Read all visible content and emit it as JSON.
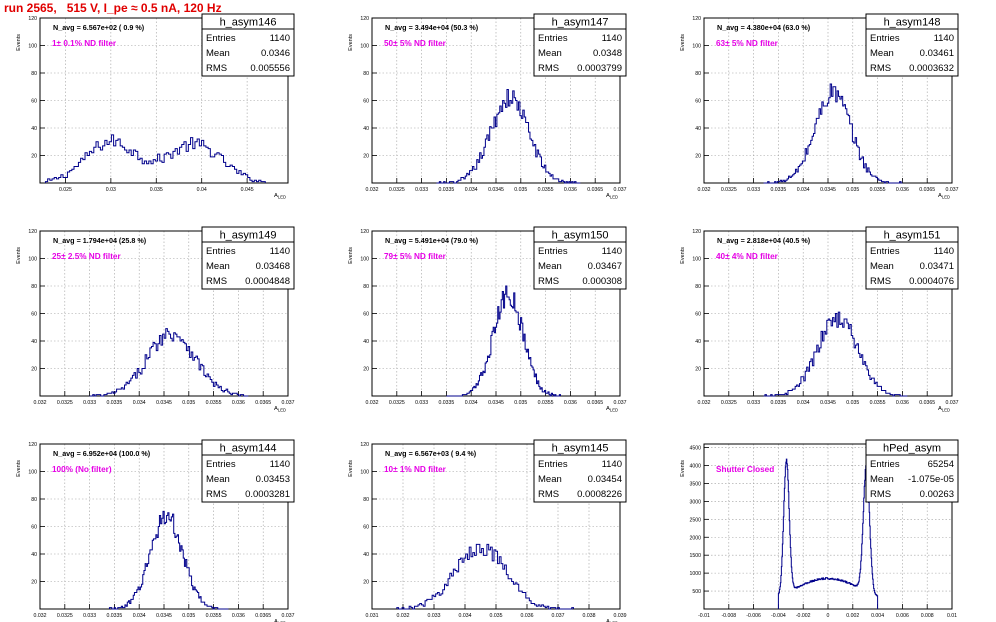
{
  "page": {
    "run_title": "run 2565,   515 V, I_pe ≈ 0.5 nA, 120 Hz"
  },
  "colors": {
    "hist": "#00008b",
    "annot": "#e600e6",
    "title": "#e00000",
    "grid": "#a0a0a0"
  },
  "chart_data": [
    {
      "type": "histogram",
      "name": "h_asym146",
      "ylabel": "Events",
      "xlabel": "A_{LED}",
      "xlim": [
        0.0222,
        0.0495
      ],
      "ylim": [
        0,
        120
      ],
      "xticks": [
        0.025,
        0.03,
        0.035,
        0.04,
        0.045
      ],
      "xtick_labels": [
        "0.025",
        "0.03",
        "0.035",
        "0.04",
        "0.045"
      ],
      "yticks": [
        20,
        40,
        60,
        80,
        100,
        120
      ],
      "ytick_labels": [
        "20",
        "40",
        "60",
        "80",
        "100",
        "120"
      ],
      "navg": "N_avg = 6.567e+02 ( 0.9 %)",
      "annotation": "1± 0.1% ND filter",
      "stats": {
        "entries": "1140",
        "mean": "0.0346",
        "rms": "0.005556"
      },
      "peaks": [
        {
          "mu": 0.03,
          "sigma": 0.0028,
          "amp": 30
        },
        {
          "mu": 0.0392,
          "sigma": 0.003,
          "amp": 28
        }
      ],
      "xrange_data": [
        0.0228,
        0.047
      ],
      "nbins": 100
    },
    {
      "type": "histogram",
      "name": "h_asym147",
      "ylabel": "Events",
      "xlabel": "A_{LED}",
      "xlim": [
        0.032,
        0.037
      ],
      "ylim": [
        0,
        120
      ],
      "xticks": [
        0.032,
        0.0325,
        0.033,
        0.0335,
        0.034,
        0.0345,
        0.035,
        0.0355,
        0.036,
        0.0365,
        0.037
      ],
      "xtick_labels": [
        "0.032",
        "0.0325",
        "0.033",
        "0.0335",
        "0.034",
        "0.0345",
        "0.035",
        "0.0355",
        "0.036",
        "0.0365",
        "0.037"
      ],
      "yticks": [
        20,
        40,
        60,
        80,
        100,
        120
      ],
      "ytick_labels": [
        "20",
        "40",
        "60",
        "80",
        "100",
        "120"
      ],
      "navg": "N_avg = 3.494e+04 (50.3 %)",
      "annotation": "50± 5% ND filter",
      "stats": {
        "entries": "1140",
        "mean": "0.0348",
        "rms": "0.0003799"
      },
      "peaks": [
        {
          "mu": 0.03478,
          "sigma": 0.00038,
          "amp": 62
        }
      ],
      "xrange_data": [
        0.0333,
        0.0362
      ],
      "nbins": 100
    },
    {
      "type": "histogram",
      "name": "h_asym148",
      "ylabel": "Events",
      "xlabel": "A_{LED}",
      "xlim": [
        0.032,
        0.037
      ],
      "ylim": [
        0,
        120
      ],
      "xticks": [
        0.032,
        0.0325,
        0.033,
        0.0335,
        0.034,
        0.0345,
        0.035,
        0.0355,
        0.036,
        0.0365,
        0.037
      ],
      "xtick_labels": [
        "0.032",
        "0.0325",
        "0.033",
        "0.0335",
        "0.034",
        "0.0345",
        "0.035",
        "0.0355",
        "0.036",
        "0.0365",
        "0.037"
      ],
      "yticks": [
        20,
        40,
        60,
        80,
        100,
        120
      ],
      "ytick_labels": [
        "20",
        "40",
        "60",
        "80",
        "100",
        "120"
      ],
      "navg": "N_avg = 4.380e+04 (63.0 %)",
      "annotation": "63± 5% ND filter",
      "stats": {
        "entries": "1140",
        "mean": "0.03461",
        "rms": "0.0003632"
      },
      "peaks": [
        {
          "mu": 0.0346,
          "sigma": 0.00036,
          "amp": 66
        }
      ],
      "xrange_data": [
        0.0332,
        0.036
      ],
      "nbins": 100
    },
    {
      "type": "histogram",
      "name": "h_asym149",
      "ylabel": "Events",
      "xlabel": "A_{LED}",
      "xlim": [
        0.032,
        0.037
      ],
      "ylim": [
        0,
        120
      ],
      "xticks": [
        0.032,
        0.0325,
        0.033,
        0.0335,
        0.034,
        0.0345,
        0.035,
        0.0355,
        0.036,
        0.0365,
        0.037
      ],
      "xtick_labels": [
        "0.032",
        "0.0325",
        "0.033",
        "0.0335",
        "0.034",
        "0.0345",
        "0.035",
        "0.0355",
        "0.036",
        "0.0365",
        "0.037"
      ],
      "yticks": [
        20,
        40,
        60,
        80,
        100,
        120
      ],
      "ytick_labels": [
        "20",
        "40",
        "60",
        "80",
        "100",
        "120"
      ],
      "navg": "N_avg = 1.794e+04 (25.8 %)",
      "annotation": "25± 2.5% ND filter",
      "stats": {
        "entries": "1140",
        "mean": "0.03468",
        "rms": "0.0004848"
      },
      "peaks": [
        {
          "mu": 0.03465,
          "sigma": 0.00048,
          "amp": 46
        }
      ],
      "xrange_data": [
        0.033,
        0.0362
      ],
      "nbins": 100
    },
    {
      "type": "histogram",
      "name": "h_asym150",
      "ylabel": "Events",
      "xlabel": "A_{LED}",
      "xlim": [
        0.032,
        0.037
      ],
      "ylim": [
        0,
        120
      ],
      "xticks": [
        0.032,
        0.0325,
        0.033,
        0.0335,
        0.034,
        0.0345,
        0.035,
        0.0355,
        0.036,
        0.0365,
        0.037
      ],
      "xtick_labels": [
        "0.032",
        "0.0325",
        "0.033",
        "0.0335",
        "0.034",
        "0.0345",
        "0.035",
        "0.0355",
        "0.036",
        "0.0365",
        "0.037"
      ],
      "yticks": [
        20,
        40,
        60,
        80,
        100,
        120
      ],
      "ytick_labels": [
        "20",
        "40",
        "60",
        "80",
        "100",
        "120"
      ],
      "navg": "N_avg = 5.491e+04 (79.0 %)",
      "annotation": "79± 5% ND filter",
      "stats": {
        "entries": "1140",
        "mean": "0.03467",
        "rms": "0.000308"
      },
      "peaks": [
        {
          "mu": 0.03475,
          "sigma": 0.0003,
          "amp": 74
        }
      ],
      "xrange_data": [
        0.0335,
        0.0358
      ],
      "nbins": 100
    },
    {
      "type": "histogram",
      "name": "h_asym151",
      "ylabel": "Events",
      "xlabel": "A_{LED}",
      "xlim": [
        0.032,
        0.037
      ],
      "ylim": [
        0,
        120
      ],
      "xticks": [
        0.032,
        0.0325,
        0.033,
        0.0335,
        0.034,
        0.0345,
        0.035,
        0.0355,
        0.036,
        0.0365,
        0.037
      ],
      "xtick_labels": [
        "0.032",
        "0.0325",
        "0.033",
        "0.0335",
        "0.034",
        "0.0345",
        "0.035",
        "0.0355",
        "0.036",
        "0.0365",
        "0.037"
      ],
      "yticks": [
        20,
        40,
        60,
        80,
        100,
        120
      ],
      "ytick_labels": [
        "20",
        "40",
        "60",
        "80",
        "100",
        "120"
      ],
      "navg": "N_avg = 2.818e+04 (40.5 %)",
      "annotation": "40± 4% ND filter",
      "stats": {
        "entries": "1140",
        "mean": "0.03471",
        "rms": "0.0004076"
      },
      "peaks": [
        {
          "mu": 0.0347,
          "sigma": 0.0004,
          "amp": 57
        }
      ],
      "xrange_data": [
        0.0332,
        0.0361
      ],
      "nbins": 100
    },
    {
      "type": "histogram",
      "name": "h_asym144",
      "ylabel": "Events",
      "xlabel": "A_{LED}",
      "xlim": [
        0.032,
        0.037
      ],
      "ylim": [
        0,
        120
      ],
      "xticks": [
        0.032,
        0.0325,
        0.033,
        0.0335,
        0.034,
        0.0345,
        0.035,
        0.0355,
        0.036,
        0.0365,
        0.037
      ],
      "xtick_labels": [
        "0.032",
        "0.0325",
        "0.033",
        "0.0335",
        "0.034",
        "0.0345",
        "0.035",
        "0.0355",
        "0.036",
        "0.0365",
        "0.037"
      ],
      "yticks": [
        20,
        40,
        60,
        80,
        100,
        120
      ],
      "ytick_labels": [
        "20",
        "40",
        "60",
        "80",
        "100",
        "120"
      ],
      "navg": "N_avg = 6.952e+04 (100.0 %)",
      "annotation": "100% (No filter)",
      "stats": {
        "entries": "1140",
        "mean": "0.03453",
        "rms": "0.0003281"
      },
      "peaks": [
        {
          "mu": 0.03455,
          "sigma": 0.00032,
          "amp": 68
        }
      ],
      "xrange_data": [
        0.0334,
        0.0358
      ],
      "nbins": 100
    },
    {
      "type": "histogram",
      "name": "h_asym145",
      "ylabel": "Events",
      "xlabel": "A_{LED}",
      "xlim": [
        0.031,
        0.039
      ],
      "ylim": [
        0,
        120
      ],
      "xticks": [
        0.031,
        0.032,
        0.033,
        0.034,
        0.035,
        0.036,
        0.037,
        0.038,
        0.039
      ],
      "xtick_labels": [
        "0.031",
        "0.032",
        "0.033",
        "0.034",
        "0.035",
        "0.036",
        "0.037",
        "0.038",
        "0.039"
      ],
      "yticks": [
        20,
        40,
        60,
        80,
        100,
        120
      ],
      "ytick_labels": [
        "20",
        "40",
        "60",
        "80",
        "100",
        "120"
      ],
      "navg": "N_avg = 6.567e+03 ( 9.4 %)",
      "annotation": "10± 1% ND filter",
      "stats": {
        "entries": "1140",
        "mean": "0.03454",
        "rms": "0.0008226"
      },
      "peaks": [
        {
          "mu": 0.0345,
          "sigma": 0.00082,
          "amp": 45
        }
      ],
      "xrange_data": [
        0.0318,
        0.0375
      ],
      "nbins": 100
    },
    {
      "type": "histogram",
      "name": "hPed_asym",
      "ylabel": "Events",
      "xlabel": "",
      "xlim": [
        -0.01,
        0.01
      ],
      "ylim": [
        0,
        4600
      ],
      "xticks": [
        -0.01,
        -0.008,
        -0.006,
        -0.004,
        -0.002,
        0,
        0.002,
        0.004,
        0.006,
        0.008,
        0.01
      ],
      "xtick_labels": [
        "-0.01",
        "-0.008",
        "-0.006",
        "-0.004",
        "-0.002",
        "0",
        "0.002",
        "0.004",
        "0.006",
        "0.008",
        "0.01"
      ],
      "yticks": [
        500,
        1000,
        1500,
        2000,
        2500,
        3000,
        3500,
        4000,
        4500
      ],
      "ytick_labels": [
        "500",
        "1000",
        "1500",
        "2000",
        "2500",
        "3000",
        "3500",
        "4000",
        "4500"
      ],
      "navg": "",
      "annotation": "Shutter Closed",
      "stats": {
        "entries": "65254",
        "mean": "-1.075e-05",
        "rms": "0.00263"
      },
      "peaks": [
        {
          "mu": -0.00335,
          "sigma": 0.00022,
          "amp": 3700
        },
        {
          "mu": 0.0031,
          "sigma": 0.00025,
          "amp": 3500
        },
        {
          "mu": 0.0,
          "sigma": 0.003,
          "amp": 850
        }
      ],
      "xrange_data": [
        -0.004,
        0.004
      ],
      "nbins": 200
    }
  ]
}
